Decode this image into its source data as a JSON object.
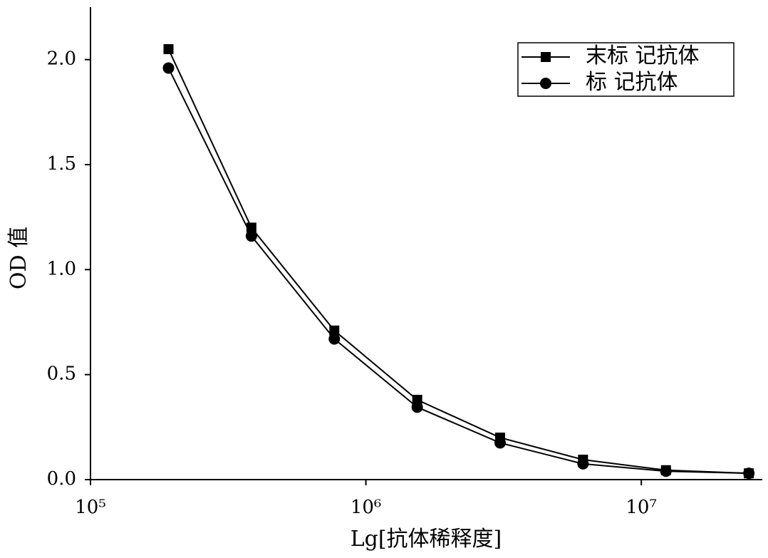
{
  "chart_data": {
    "type": "line",
    "x_label": "Lg[抗体稀释度]",
    "y_label": "OD 值",
    "x": [
      192000,
      384000,
      768000,
      1536000,
      3072000,
      6144000,
      12288000,
      24576000
    ],
    "series": [
      {
        "name": "末标 记抗体",
        "color": "#000000",
        "marker": "square",
        "values": [
          2.05,
          1.2,
          0.71,
          0.38,
          0.2,
          0.095,
          0.045,
          0.03
        ]
      },
      {
        "name": "标 记抗体",
        "color": "#000000",
        "marker": "circle",
        "values": [
          1.96,
          1.16,
          0.67,
          0.345,
          0.175,
          0.075,
          0.04,
          0.03
        ]
      }
    ],
    "xlim": [
      100000,
      27500000
    ],
    "x_log": true,
    "xticks": [
      {
        "value": 100000,
        "label": "10⁵"
      },
      {
        "value": 1000000,
        "label": "10⁶"
      },
      {
        "value": 10000000,
        "label": "10⁷"
      }
    ],
    "ylim": [
      0,
      2.25
    ],
    "yticks": [
      {
        "value": 0,
        "label": "0.0"
      },
      {
        "value": 0.5,
        "label": "0.5"
      },
      {
        "value": 1,
        "label": "1.0"
      },
      {
        "value": 1.5,
        "label": "1.5"
      },
      {
        "value": 2,
        "label": "2.0"
      }
    ],
    "legend": "upper right",
    "grid": false
  }
}
